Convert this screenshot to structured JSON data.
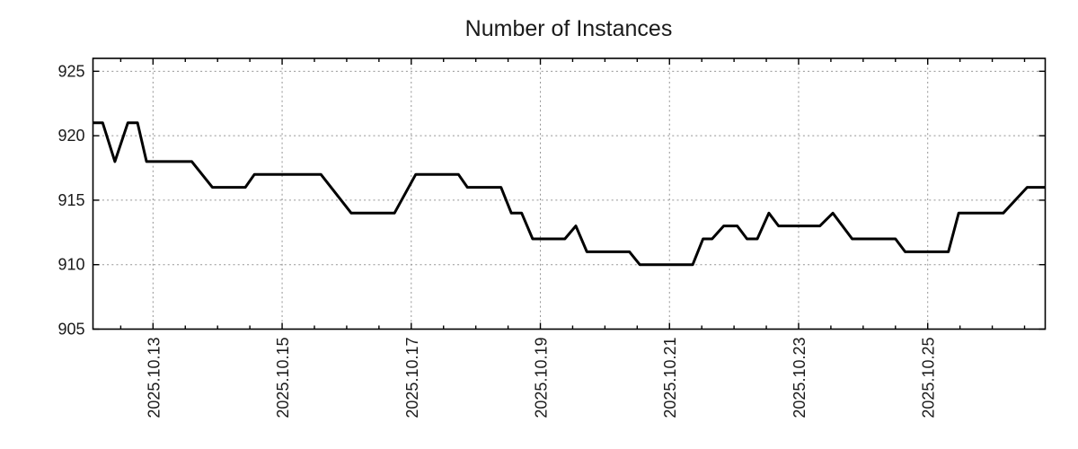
{
  "chart_data": {
    "type": "line",
    "title": "Number of Instances",
    "background_color": "#ffffff",
    "border_color": "#000000",
    "grid": {
      "visible": true,
      "style": "dotted",
      "color": "#949494"
    },
    "x_axis": {
      "unit": "date",
      "range_days": [
        -0.93,
        13.82
      ],
      "major_ticks": [
        {
          "t": 0,
          "label": "2025.10.13"
        },
        {
          "t": 2,
          "label": "2025.10.15"
        },
        {
          "t": 4,
          "label": "2025.10.17"
        },
        {
          "t": 6,
          "label": "2025.10.19"
        },
        {
          "t": 8,
          "label": "2025.10.21"
        },
        {
          "t": 10,
          "label": "2025.10.23"
        },
        {
          "t": 12,
          "label": "2025.10.25"
        }
      ],
      "minor_tick_step_days": 0.5,
      "label_rotation_deg": -90
    },
    "y_axis": {
      "range": [
        905,
        926
      ],
      "major_ticks": [
        905,
        910,
        915,
        920,
        925
      ]
    },
    "series": [
      {
        "name": "instances",
        "color": "#000000",
        "line_width": 3,
        "points_t_days_value": [
          [
            -0.93,
            921
          ],
          [
            -0.78,
            921
          ],
          [
            -0.59,
            918
          ],
          [
            -0.39,
            921
          ],
          [
            -0.24,
            921
          ],
          [
            -0.1,
            918
          ],
          [
            0.6,
            918
          ],
          [
            0.92,
            916
          ],
          [
            1.43,
            916
          ],
          [
            1.57,
            917
          ],
          [
            2.6,
            917
          ],
          [
            3.07,
            914
          ],
          [
            3.74,
            914
          ],
          [
            4.07,
            917
          ],
          [
            4.73,
            917
          ],
          [
            4.87,
            916
          ],
          [
            5.39,
            916
          ],
          [
            5.55,
            914
          ],
          [
            5.71,
            914
          ],
          [
            5.88,
            912
          ],
          [
            6.38,
            912
          ],
          [
            6.55,
            913
          ],
          [
            6.72,
            911
          ],
          [
            7.38,
            911
          ],
          [
            7.54,
            910
          ],
          [
            8.36,
            910
          ],
          [
            8.52,
            912
          ],
          [
            8.66,
            912
          ],
          [
            8.84,
            913
          ],
          [
            9.05,
            913
          ],
          [
            9.2,
            912
          ],
          [
            9.36,
            912
          ],
          [
            9.54,
            914
          ],
          [
            9.69,
            913
          ],
          [
            10.33,
            913
          ],
          [
            10.53,
            914
          ],
          [
            10.83,
            912
          ],
          [
            11.5,
            912
          ],
          [
            11.65,
            911
          ],
          [
            12.32,
            911
          ],
          [
            12.48,
            914
          ],
          [
            13.17,
            914
          ],
          [
            13.54,
            916
          ],
          [
            13.82,
            916
          ]
        ]
      }
    ]
  }
}
